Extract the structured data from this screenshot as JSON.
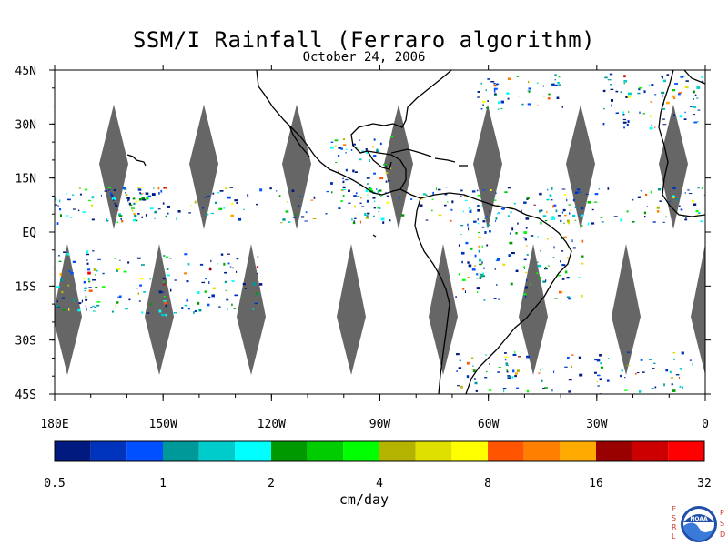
{
  "map": {
    "title": "SSM/I Rainfall (Ferraro algorithm)",
    "date": "October 24, 2006",
    "lat_labels": [
      "45N",
      "30N",
      "15N",
      "EQ",
      "15S",
      "30S",
      "45S"
    ],
    "lon_labels": [
      "180E",
      "150W",
      "120W",
      "90W",
      "60W",
      "30W",
      "0"
    ],
    "lat_range": [
      -45,
      45
    ],
    "lon_range": [
      -180,
      0
    ],
    "gap_color": "#666666",
    "land_outline_color": "#000000"
  },
  "colorbar": {
    "colors": [
      "#001a80",
      "#0033bb",
      "#0050ff",
      "#009999",
      "#00cccc",
      "#00ffff",
      "#009900",
      "#00cc00",
      "#00ff00",
      "#b3b300",
      "#e0e000",
      "#ffff00",
      "#ff5500",
      "#ff8000",
      "#ffaa00",
      "#990000",
      "#cc0000",
      "#ff0000"
    ],
    "labels": [
      "0.5",
      "1",
      "2",
      "4",
      "8",
      "16",
      "32"
    ],
    "units": "cm/day"
  },
  "logo": {
    "left_letters": [
      "E",
      "S",
      "R",
      "L"
    ],
    "right_letters": [
      "P",
      "S",
      "D"
    ],
    "emblem_text": "NOAA"
  }
}
